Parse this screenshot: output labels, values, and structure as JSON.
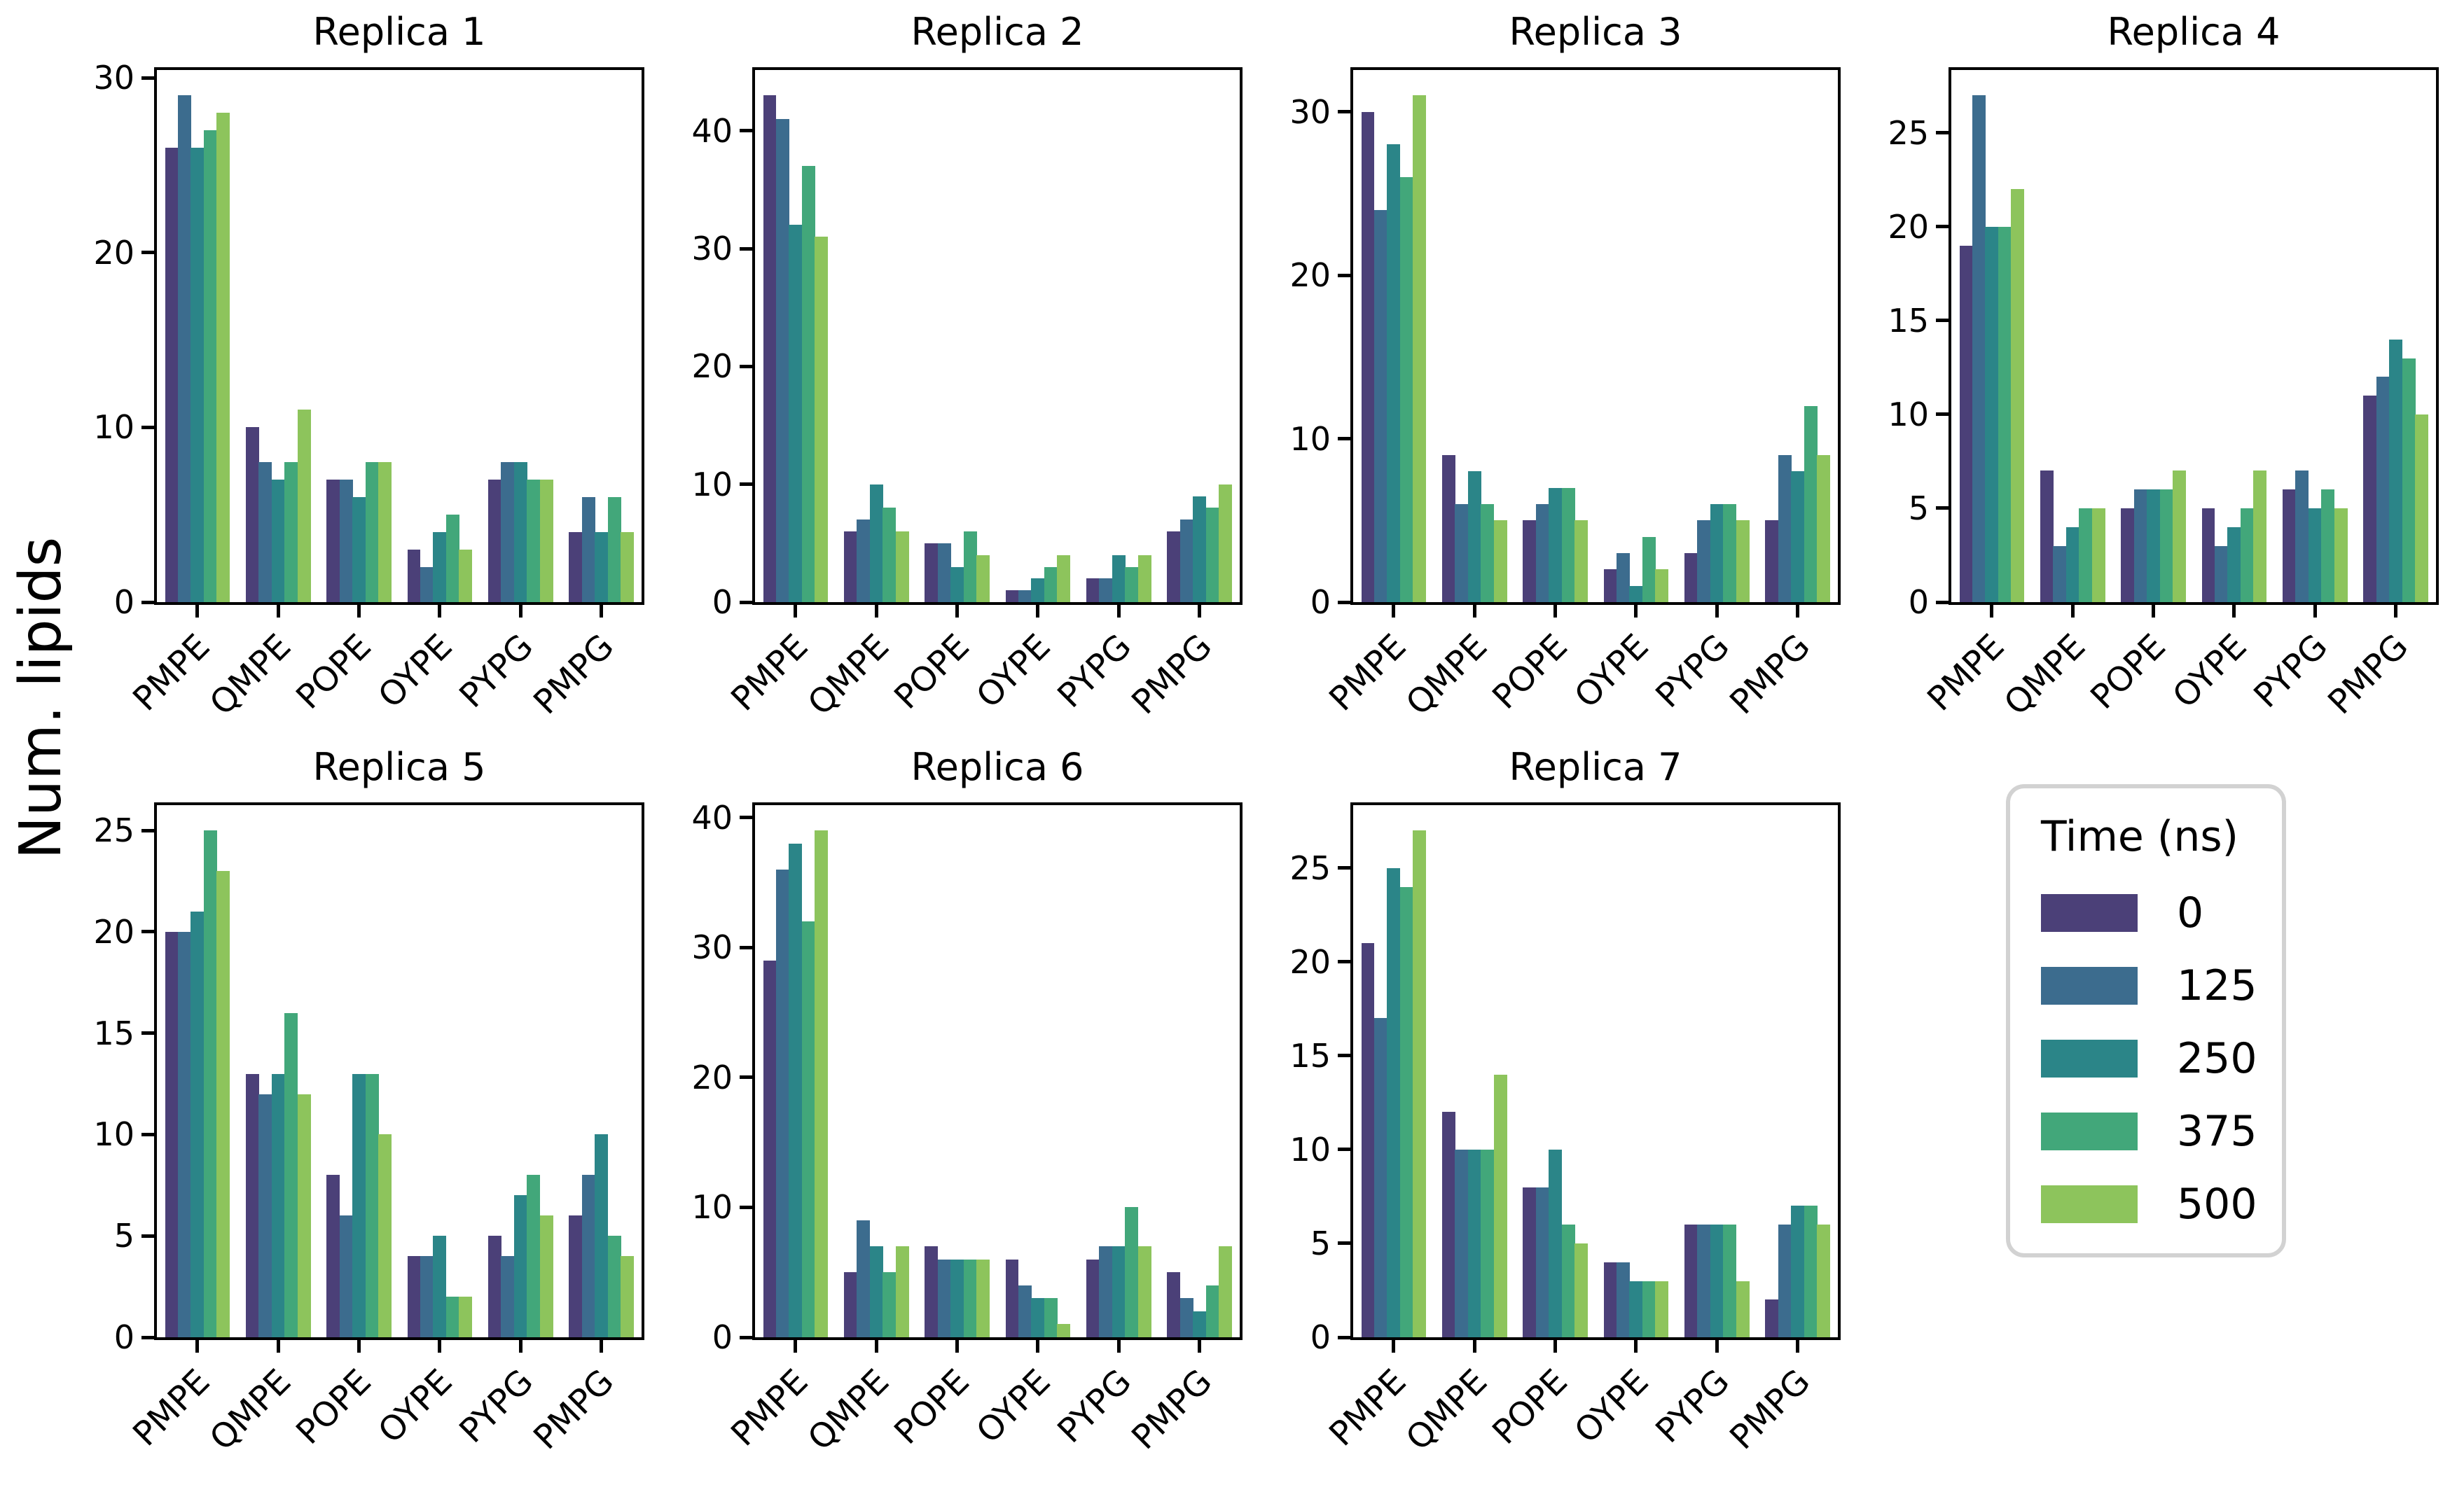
{
  "figure": {
    "ylabel": "Num. lipids",
    "categories": [
      "PMPE",
      "QMPE",
      "POPE",
      "OYPE",
      "PYPG",
      "PMPG"
    ],
    "times": [
      "0",
      "125",
      "250",
      "375",
      "500"
    ],
    "palette": [
      "#4b4078",
      "#3c6c8e",
      "#2b8588",
      "#42a77a",
      "#8dc45c"
    ],
    "legend": {
      "title": "Time (ns)",
      "border_color": "#d2d2d2"
    }
  },
  "chart_data": [
    {
      "type": "bar",
      "title": "Replica 1",
      "categories": [
        "PMPE",
        "QMPE",
        "POPE",
        "OYPE",
        "PYPG",
        "PMPG"
      ],
      "series": [
        {
          "name": "0",
          "values": [
            26,
            10,
            7,
            3,
            7,
            4
          ]
        },
        {
          "name": "125",
          "values": [
            29,
            8,
            7,
            2,
            8,
            6
          ]
        },
        {
          "name": "250",
          "values": [
            26,
            7,
            6,
            4,
            8,
            4
          ]
        },
        {
          "name": "375",
          "values": [
            27,
            8,
            8,
            5,
            7,
            6
          ]
        },
        {
          "name": "500",
          "values": [
            28,
            11,
            8,
            3,
            7,
            4
          ]
        }
      ],
      "yticks": [
        0,
        10,
        20,
        30
      ],
      "ylim": [
        0,
        30.45
      ]
    },
    {
      "type": "bar",
      "title": "Replica 2",
      "categories": [
        "PMPE",
        "QMPE",
        "POPE",
        "OYPE",
        "PYPG",
        "PMPG"
      ],
      "series": [
        {
          "name": "0",
          "values": [
            43,
            6,
            5,
            1,
            2,
            6
          ]
        },
        {
          "name": "125",
          "values": [
            41,
            7,
            5,
            1,
            2,
            7
          ]
        },
        {
          "name": "250",
          "values": [
            32,
            10,
            3,
            2,
            4,
            9
          ]
        },
        {
          "name": "375",
          "values": [
            37,
            8,
            6,
            3,
            3,
            8
          ]
        },
        {
          "name": "500",
          "values": [
            31,
            6,
            4,
            4,
            4,
            10
          ]
        }
      ],
      "yticks": [
        0,
        10,
        20,
        30,
        40
      ],
      "ylim": [
        0,
        45.15
      ]
    },
    {
      "type": "bar",
      "title": "Replica 3",
      "categories": [
        "PMPE",
        "QMPE",
        "POPE",
        "OYPE",
        "PYPG",
        "PMPG"
      ],
      "series": [
        {
          "name": "0",
          "values": [
            30,
            9,
            5,
            2,
            3,
            5
          ]
        },
        {
          "name": "125",
          "values": [
            24,
            6,
            6,
            3,
            5,
            9
          ]
        },
        {
          "name": "250",
          "values": [
            28,
            8,
            7,
            1,
            6,
            8
          ]
        },
        {
          "name": "375",
          "values": [
            26,
            6,
            7,
            4,
            6,
            12
          ]
        },
        {
          "name": "500",
          "values": [
            31,
            5,
            5,
            2,
            5,
            9
          ]
        }
      ],
      "yticks": [
        0,
        10,
        20,
        30
      ],
      "ylim": [
        0,
        32.55
      ]
    },
    {
      "type": "bar",
      "title": "Replica 4",
      "categories": [
        "PMPE",
        "QMPE",
        "POPE",
        "OYPE",
        "PYPG",
        "PMPG"
      ],
      "series": [
        {
          "name": "0",
          "values": [
            19,
            7,
            5,
            5,
            6,
            11
          ]
        },
        {
          "name": "125",
          "values": [
            27,
            3,
            6,
            3,
            7,
            12
          ]
        },
        {
          "name": "250",
          "values": [
            20,
            4,
            6,
            4,
            5,
            14
          ]
        },
        {
          "name": "375",
          "values": [
            20,
            5,
            6,
            5,
            6,
            13
          ]
        },
        {
          "name": "500",
          "values": [
            22,
            5,
            7,
            7,
            5,
            10
          ]
        }
      ],
      "yticks": [
        0,
        5,
        10,
        15,
        20,
        25
      ],
      "ylim": [
        0,
        28.35
      ]
    },
    {
      "type": "bar",
      "title": "Replica 5",
      "categories": [
        "PMPE",
        "QMPE",
        "POPE",
        "OYPE",
        "PYPG",
        "PMPG"
      ],
      "series": [
        {
          "name": "0",
          "values": [
            20,
            13,
            8,
            4,
            5,
            6
          ]
        },
        {
          "name": "125",
          "values": [
            20,
            12,
            6,
            4,
            4,
            8
          ]
        },
        {
          "name": "250",
          "values": [
            21,
            13,
            13,
            5,
            7,
            10
          ]
        },
        {
          "name": "375",
          "values": [
            25,
            16,
            13,
            2,
            8,
            5
          ]
        },
        {
          "name": "500",
          "values": [
            23,
            12,
            10,
            2,
            6,
            4
          ]
        }
      ],
      "yticks": [
        0,
        5,
        10,
        15,
        20,
        25
      ],
      "ylim": [
        0,
        26.25
      ]
    },
    {
      "type": "bar",
      "title": "Replica 6",
      "categories": [
        "PMPE",
        "QMPE",
        "POPE",
        "OYPE",
        "PYPG",
        "PMPG"
      ],
      "series": [
        {
          "name": "0",
          "values": [
            29,
            5,
            7,
            6,
            6,
            5
          ]
        },
        {
          "name": "125",
          "values": [
            36,
            9,
            6,
            4,
            7,
            3
          ]
        },
        {
          "name": "250",
          "values": [
            38,
            7,
            6,
            3,
            7,
            2
          ]
        },
        {
          "name": "375",
          "values": [
            32,
            5,
            6,
            3,
            10,
            4
          ]
        },
        {
          "name": "500",
          "values": [
            39,
            7,
            6,
            1,
            7,
            7
          ]
        }
      ],
      "yticks": [
        0,
        10,
        20,
        30,
        40
      ],
      "ylim": [
        0,
        40.95
      ]
    },
    {
      "type": "bar",
      "title": "Replica 7",
      "categories": [
        "PMPE",
        "QMPE",
        "POPE",
        "OYPE",
        "PYPG",
        "PMPG"
      ],
      "series": [
        {
          "name": "0",
          "values": [
            21,
            12,
            8,
            4,
            6,
            2
          ]
        },
        {
          "name": "125",
          "values": [
            17,
            10,
            8,
            4,
            6,
            6
          ]
        },
        {
          "name": "250",
          "values": [
            25,
            10,
            10,
            3,
            6,
            7
          ]
        },
        {
          "name": "375",
          "values": [
            24,
            10,
            6,
            3,
            6,
            7
          ]
        },
        {
          "name": "500",
          "values": [
            27,
            14,
            5,
            3,
            3,
            6
          ]
        }
      ],
      "yticks": [
        0,
        5,
        10,
        15,
        20,
        25
      ],
      "ylim": [
        0,
        28.35
      ]
    }
  ]
}
